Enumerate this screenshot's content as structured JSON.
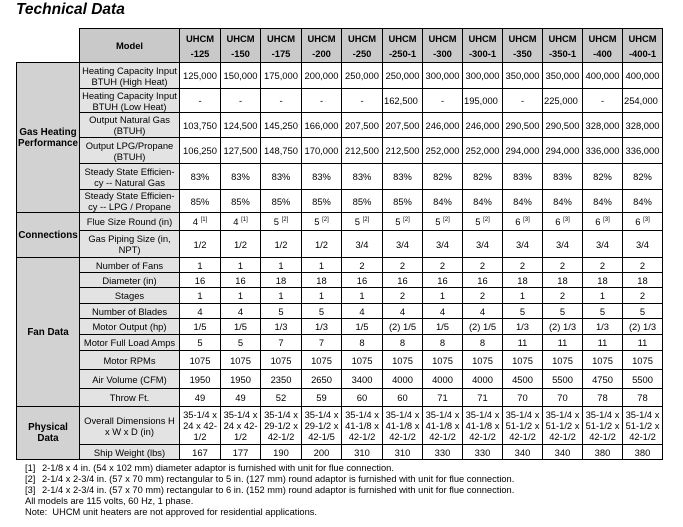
{
  "title": "Technical Data",
  "header": {
    "model_label": "Model",
    "models": [
      [
        "UHCM",
        "-125"
      ],
      [
        "UHCM",
        "-150"
      ],
      [
        "UHCM",
        "-175"
      ],
      [
        "UHCM",
        "-200"
      ],
      [
        "UHCM",
        "-250"
      ],
      [
        "UHCM",
        "-250-1"
      ],
      [
        "UHCM",
        "-300"
      ],
      [
        "UHCM",
        "-300-1"
      ],
      [
        "UHCM",
        "-350"
      ],
      [
        "UHCM",
        "-350-1"
      ],
      [
        "UHCM",
        "-400"
      ],
      [
        "UHCM",
        "-400-1"
      ]
    ]
  },
  "groups": [
    {
      "name": "Gas Heating Performance",
      "rows": [
        {
          "label": "Heating Capacity Input BTUH (High Heat)",
          "values": [
            "125,000",
            "150,000",
            "175,000",
            "200,000",
            "250,000",
            "250,000",
            "300,000",
            "300,000",
            "350,000",
            "350,000",
            "400,000",
            "400,000"
          ]
        },
        {
          "label": "Heating Capacity Input BTUH (Low Heat)",
          "values": [
            "-",
            "-",
            "-",
            "-",
            "-",
            "162,500",
            "-",
            "195,000",
            "-",
            "225,000",
            "-",
            "254,000"
          ]
        },
        {
          "label": "Output Natural Gas (BTUH)",
          "values": [
            "103,750",
            "124,500",
            "145,250",
            "166,000",
            "207,500",
            "207,500",
            "246,000",
            "246,000",
            "290,500",
            "290,500",
            "328,000",
            "328,000"
          ]
        },
        {
          "label": "Output LPG/Propane (BTUH)",
          "values": [
            "106,250",
            "127,500",
            "148,750",
            "170,000",
            "212,500",
            "212,500",
            "252,000",
            "252,000",
            "294,000",
            "294,000",
            "336,000",
            "336,000"
          ]
        },
        {
          "label": "Steady State Efficien-cy -- Natural Gas",
          "values": [
            "83%",
            "83%",
            "83%",
            "83%",
            "83%",
            "83%",
            "82%",
            "82%",
            "83%",
            "83%",
            "82%",
            "82%"
          ]
        },
        {
          "label": "Steady State Efficien-cy -- LPG / Propane",
          "values": [
            "85%",
            "85%",
            "85%",
            "85%",
            "85%",
            "85%",
            "84%",
            "84%",
            "84%",
            "84%",
            "84%",
            "84%"
          ]
        }
      ]
    },
    {
      "name": "Connections",
      "rows": [
        {
          "label": "Flue Size Round (in)",
          "values": [
            "4",
            "4",
            "5",
            "5",
            "5",
            "5",
            "5",
            "5",
            "6",
            "6",
            "6",
            "6"
          ],
          "notes": [
            "[1]",
            "[1]",
            "[2]",
            "[2]",
            "[2]",
            "[2]",
            "[2]",
            "[2]",
            "[3]",
            "[3]",
            "[3]",
            "[3]"
          ]
        },
        {
          "label": "Gas Piping Size (in, NPT)",
          "values": [
            "1/2",
            "1/2",
            "1/2",
            "1/2",
            "3/4",
            "3/4",
            "3/4",
            "3/4",
            "3/4",
            "3/4",
            "3/4",
            "3/4"
          ]
        }
      ]
    },
    {
      "name": "Fan Data",
      "rows": [
        {
          "label": "Number of Fans",
          "values": [
            "1",
            "1",
            "1",
            "1",
            "2",
            "2",
            "2",
            "2",
            "2",
            "2",
            "2",
            "2"
          ]
        },
        {
          "label": "Diameter (in)",
          "values": [
            "16",
            "16",
            "18",
            "18",
            "16",
            "16",
            "16",
            "16",
            "18",
            "18",
            "18",
            "18"
          ]
        },
        {
          "label": "Stages",
          "values": [
            "1",
            "1",
            "1",
            "1",
            "1",
            "2",
            "1",
            "2",
            "1",
            "2",
            "1",
            "2"
          ]
        },
        {
          "label": "Number of Blades",
          "values": [
            "4",
            "4",
            "5",
            "5",
            "4",
            "4",
            "4",
            "4",
            "5",
            "5",
            "5",
            "5"
          ]
        },
        {
          "label": "Motor Output (hp)",
          "values": [
            "1/5",
            "1/5",
            "1/3",
            "1/3",
            "1/5",
            "(2) 1/5",
            "1/5",
            "(2) 1/5",
            "1/3",
            "(2) 1/3",
            "1/3",
            "(2) 1/3"
          ]
        },
        {
          "label": "Motor Full Load Amps",
          "values": [
            "5",
            "5",
            "7",
            "7",
            "8",
            "8",
            "8",
            "8",
            "11",
            "11",
            "11",
            "11"
          ]
        },
        {
          "label": "Motor RPMs",
          "values": [
            "1075",
            "1075",
            "1075",
            "1075",
            "1075",
            "1075",
            "1075",
            "1075",
            "1075",
            "1075",
            "1075",
            "1075"
          ]
        },
        {
          "label": "Air Volume (CFM)",
          "values": [
            "1950",
            "1950",
            "2350",
            "2650",
            "3400",
            "4000",
            "4000",
            "4000",
            "4500",
            "5500",
            "4750",
            "5500"
          ]
        },
        {
          "label": "Throw Ft.",
          "values": [
            "49",
            "49",
            "52",
            "59",
            "60",
            "60",
            "71",
            "71",
            "70",
            "70",
            "78",
            "78"
          ]
        }
      ]
    },
    {
      "name": "Physical Data",
      "rows": [
        {
          "label": "Overall Dimensions H x W x D (in)",
          "values": [
            "35-1/4 x 24 x 42-1/2",
            "35-1/4 x 24 x 42-1/2",
            "35-1/4 x 29-1/2 x 42-1/2",
            "35-1/4 x 29-1/2 x 42-1/5",
            "35-1/4 x 41-1/8 x 42-1/2",
            "35-1/4 x 41-1/8 x 42-1/2",
            "35-1/4 x 41-1/8 x 42-1/2",
            "35-1/4 x 41-1/8 x 42-1/2",
            "35-1/4 x 51-1/2 x 42-1/2",
            "35-1/4 x 51-1/2 x 42-1/2",
            "35-1/4 x 51-1/2 x 42-1/2",
            "35-1/4 x 51-1/2 x 42-1/2"
          ]
        },
        {
          "label": "Ship Weight (lbs)",
          "values": [
            "167",
            "177",
            "190",
            "200",
            "310",
            "310",
            "330",
            "330",
            "340",
            "340",
            "380",
            "380"
          ]
        }
      ]
    }
  ],
  "footnotes": [
    {
      "num": "[1]",
      "text": "2-1/8 x 4 in. (54 x 102 mm) diameter adaptor is furnished with unit for flue connection."
    },
    {
      "num": "[2]",
      "text": "2-1/4 x 2-3/4 in. (57 x 70 mm) rectangular to 5 in. (127 mm) round adaptor is furnished with unit for flue connection."
    },
    {
      "num": "[3]",
      "text": "2-1/4 x 2-3/4 in. (57 x 70 mm) rectangular to 6 in. (152 mm) round adaptor is furnished with unit for flue connection."
    }
  ],
  "notes": [
    "All models are 115 volts, 60 Hz, 1 phase.",
    "Note:  UHCM unit heaters are not approved for residential applications."
  ]
}
